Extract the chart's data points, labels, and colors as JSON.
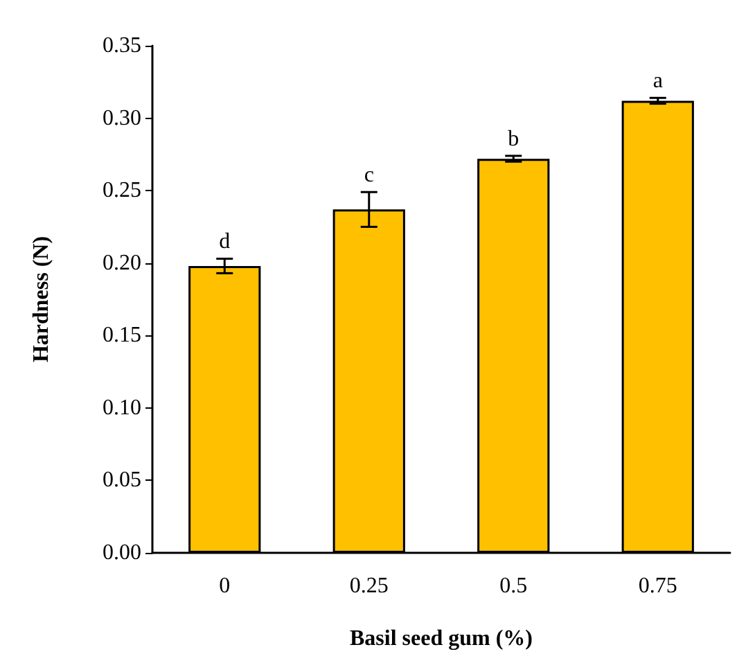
{
  "chart_data": {
    "type": "bar",
    "xlabel": "Basil seed gum (%)",
    "ylabel": "Hardness (N)",
    "categories": [
      "0",
      "0.25",
      "0.5",
      "0.75"
    ],
    "values": [
      0.198,
      0.237,
      0.272,
      0.312
    ],
    "errors": [
      0.005,
      0.012,
      0.002,
      0.002
    ],
    "color": "#ffc000",
    "ylim": [
      0,
      0.35
    ],
    "yticks": [
      {
        "value": 0,
        "label": "0.00"
      },
      {
        "value": 0.05,
        "label": "0.05"
      },
      {
        "value": 0.1,
        "label": "0.10"
      },
      {
        "value": 0.15,
        "label": "0.15"
      },
      {
        "value": 0.2,
        "label": "0.20"
      },
      {
        "value": 0.25,
        "label": "0.25"
      },
      {
        "value": 0.3,
        "label": "0.30"
      },
      {
        "value": 0.35,
        "label": "0.35"
      }
    ],
    "grid": false,
    "annotations": [
      "d",
      "c",
      "b",
      "a"
    ]
  }
}
